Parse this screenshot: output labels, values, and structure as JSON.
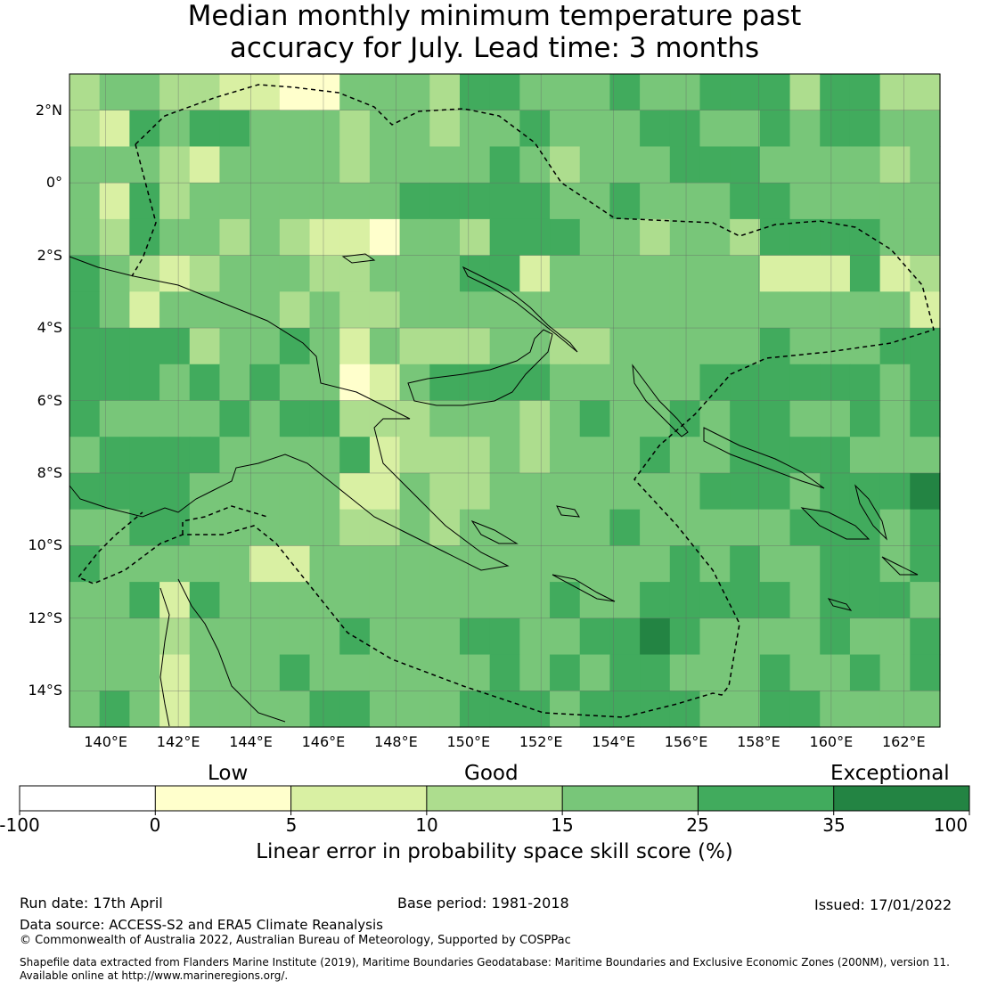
{
  "title": {
    "line1": "Median monthly minimum temperature past",
    "line2": "accuracy for July. Lead time: 3 months"
  },
  "map": {
    "lon_range": [
      139,
      163
    ],
    "lat_range": [
      -15,
      3
    ],
    "lat_labels": [
      "2°N",
      "0°",
      "2°S",
      "4°S",
      "6°S",
      "8°S",
      "10°S",
      "12°S",
      "14°S"
    ],
    "lon_labels": [
      "140°E",
      "142°E",
      "144°E",
      "146°E",
      "148°E",
      "150°E",
      "152°E",
      "154°E",
      "156°E",
      "158°E",
      "160°E",
      "162°E"
    ]
  },
  "legend": {
    "categories": [
      "Low",
      "Good",
      "Exceptional"
    ],
    "ticks": [
      "-100",
      "0",
      "5",
      "10",
      "15",
      "25",
      "35",
      "100"
    ],
    "colors": [
      "#ffffff",
      "#ffffcc",
      "#d9f0a3",
      "#addd8e",
      "#78c679",
      "#41ab5d",
      "#238443"
    ],
    "title": "Linear error in probability space skill score (%)"
  },
  "footer": {
    "run_date": "Run date: 17th April",
    "base_period": "Base period: 1981-2018",
    "issued": "Issued: 17/01/2022",
    "data_source": "Data source: ACCESS-S2 and ERA5 Climate Reanalysis",
    "copyright": "© Commonwealth of Australia 2022, Australian Bureau of Meteorology, Supported by COSPPac",
    "shapefile_line1": "Shapefile data extracted from Flanders Marine Institute (2019), Maritime Boundaries Geodatabase: Maritime Boundaries and Exclusive Economic Zones (200NM), version 11.",
    "shapefile_line2": "Available online at http://www.marineregions.org/."
  }
}
